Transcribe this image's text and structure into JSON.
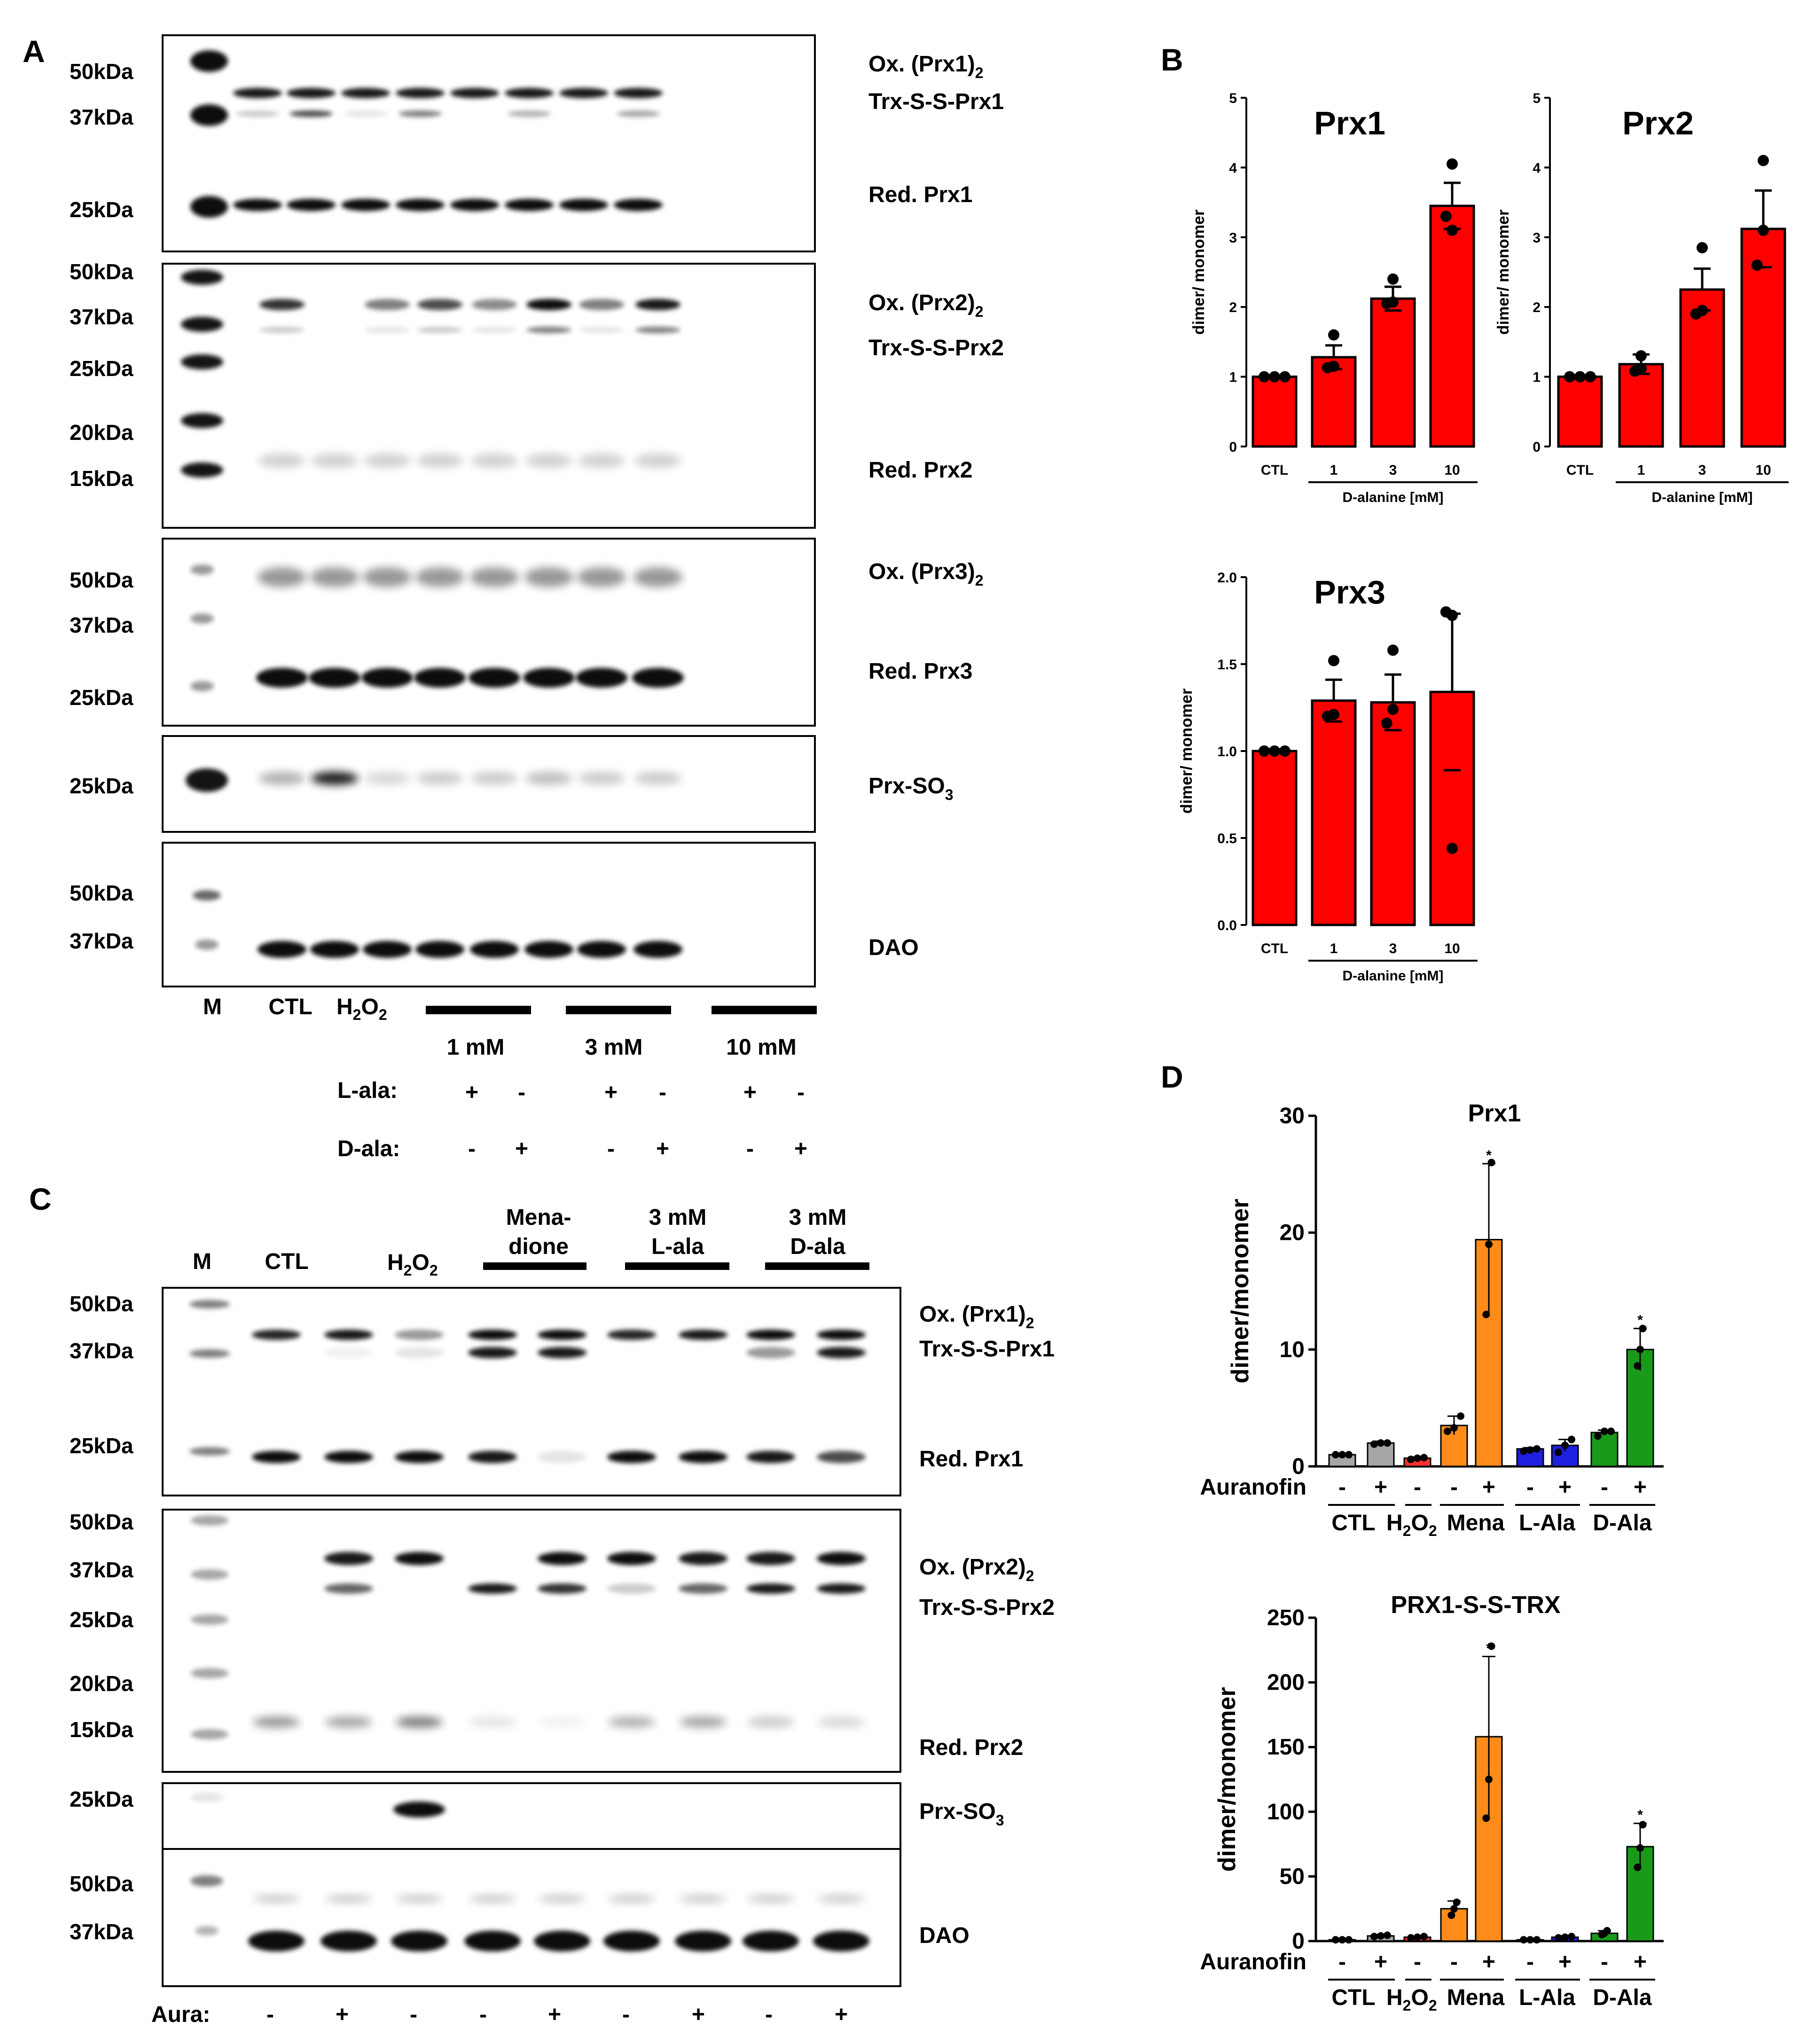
{
  "figure": {
    "panels": {
      "a": "A",
      "b": "B",
      "c": "C",
      "d": "D"
    },
    "panelA": {
      "markers": {
        "b1": [
          "50kDa",
          "37kDa",
          "25kDa"
        ],
        "b2": [
          "50kDa",
          "37kDa",
          "25kDa",
          "20kDa",
          "15kDa"
        ],
        "b3": [
          "50kDa",
          "37kDa",
          "25kDa"
        ],
        "b4": [
          "25kDa"
        ],
        "b5": [
          "50kDa",
          "37kDa"
        ]
      },
      "bandLabels": {
        "b1_ox": "Ox. (Prx1)",
        "b1_trx": "Trx-S-S-Prx1",
        "b1_red": "Red. Prx1",
        "b2_ox": "Ox. (Prx2)",
        "b2_trx": "Trx-S-S-Prx2",
        "b2_red": "Red. Prx2",
        "b3_ox": "Ox. (Prx3)",
        "b3_red": "Red. Prx3",
        "b4": "Prx-SO",
        "b5": "DAO",
        "sub2": "2",
        "sub3": "3"
      },
      "lanes": {
        "m": "M",
        "ctl": "CTL",
        "h2o2": "H",
        "h2o2_sub": "2",
        "h2o2_o": "O",
        "h2o2_sub2": "2"
      },
      "doses": [
        "1 mM",
        "3 mM",
        "10 mM"
      ],
      "lalaLabel": "L-ala:",
      "dalaLabel": "D-ala:",
      "lalaSigns": [
        "+",
        "-",
        "+",
        "-",
        "+",
        "-"
      ],
      "dalaSigns": [
        "-",
        "+",
        "-",
        "+",
        "-",
        "+"
      ]
    },
    "panelC": {
      "headers": {
        "m": "M",
        "ctl": "CTL",
        "h2o2": "H",
        "sub": "2",
        "o": "O",
        "mena1": "Mena-",
        "mena2": "dione",
        "l1": "3 mM",
        "l2": "L-ala",
        "d1": "3 mM",
        "d2": "D-ala"
      },
      "markers": {
        "b1": [
          "50kDa",
          "37kDa",
          "25kDa"
        ],
        "b2": [
          "50kDa",
          "37kDa",
          "25kDa",
          "20kDa",
          "15kDa"
        ],
        "b3": [
          "25kDa"
        ],
        "b4": [
          "50kDa",
          "37kDa"
        ]
      },
      "bandLabels": {
        "b1_ox": "Ox. (Prx1)",
        "b1_trx": "Trx-S-S-Prx1",
        "b1_red": "Red. Prx1",
        "b2_ox": "Ox. (Prx2)",
        "b2_trx": "Trx-S-S-Prx2",
        "b2_red": "Red. Prx2",
        "b3": "Prx-SO",
        "b4": "DAO",
        "sub2": "2",
        "sub3": "3"
      },
      "auraLabel": "Aura:",
      "auraSigns": [
        "-",
        "+",
        "-",
        "-",
        "+",
        "-",
        "+",
        "-",
        "+"
      ]
    }
  },
  "chart_data": [
    {
      "type": "bar",
      "title": "Prx1",
      "categories": [
        "CTL",
        "1",
        "3",
        "10"
      ],
      "values": [
        1.0,
        1.28,
        2.12,
        3.45
      ],
      "errors": [
        0.02,
        0.17,
        0.17,
        0.33
      ],
      "points": [
        [
          1,
          1,
          1
        ],
        [
          1.13,
          1.15,
          1.6
        ],
        [
          2.05,
          2.07,
          2.4
        ],
        [
          3.3,
          3.1,
          4.05
        ]
      ],
      "group_label": "D-alanine [mM]",
      "ylabel": "dimer/ monomer",
      "ylim": [
        0,
        5
      ],
      "yticks": [
        "0",
        "1",
        "2",
        "3",
        "4",
        "5"
      ],
      "color": "#ff0000"
    },
    {
      "type": "bar",
      "title": "Prx2",
      "categories": [
        "CTL",
        "1",
        "3",
        "10"
      ],
      "values": [
        1.0,
        1.18,
        2.25,
        3.12
      ],
      "errors": [
        0.02,
        0.14,
        0.3,
        0.55
      ],
      "points": [
        [
          1,
          1,
          1
        ],
        [
          1.08,
          1.12,
          1.3
        ],
        [
          1.9,
          1.95,
          2.85
        ],
        [
          2.6,
          3.1,
          4.1
        ]
      ],
      "group_label": "D-alanine [mM]",
      "ylabel": "dimer/ monomer",
      "ylim": [
        0,
        5
      ],
      "yticks": [
        "0",
        "1",
        "2",
        "3",
        "4",
        "5"
      ],
      "color": "#ff0000"
    },
    {
      "type": "bar",
      "title": "Prx3",
      "categories": [
        "CTL",
        "1",
        "3",
        "10"
      ],
      "values": [
        1.0,
        1.29,
        1.28,
        1.34
      ],
      "errors": [
        0.01,
        0.12,
        0.16,
        0.45
      ],
      "points": [
        [
          1,
          1,
          1
        ],
        [
          1.2,
          1.21,
          1.52
        ],
        [
          1.16,
          1.24,
          1.58
        ],
        [
          1.8,
          1.78,
          0.44
        ]
      ],
      "group_label": "D-alanine [mM]",
      "ylabel": "dimer/ monomer",
      "ylim": [
        0,
        2.0
      ],
      "yticks": [
        "0.0",
        "0.5",
        "1.0",
        "1.5",
        "2.0"
      ],
      "color": "#ff0000"
    },
    {
      "type": "bar",
      "title": "Prx1",
      "ylabel": "dimer/monomer",
      "ylim": [
        0,
        30
      ],
      "yticks": [
        "0",
        "10",
        "20",
        "30"
      ],
      "auranofin_label": "Auranofin",
      "auranofin_signs": [
        "-",
        "+",
        "-",
        "-",
        "+",
        "-",
        "+",
        "-",
        "+"
      ],
      "groups": [
        "CTL",
        "H2O2",
        "Mena",
        "L-Ala",
        "D-Ala"
      ],
      "values": [
        1.0,
        2.0,
        0.7,
        3.5,
        19.4,
        1.5,
        1.8,
        2.9,
        10.0
      ],
      "errors": [
        0.05,
        0.15,
        0.1,
        0.8,
        6.5,
        0.1,
        0.5,
        0.2,
        1.8
      ],
      "points": [
        [
          1,
          1,
          1
        ],
        [
          1.9,
          2.0,
          2.0
        ],
        [
          0.6,
          0.7,
          0.75
        ],
        [
          3.0,
          3.3,
          4.3
        ],
        [
          13.0,
          19.0,
          26.0
        ],
        [
          1.3,
          1.4,
          1.5
        ],
        [
          1.2,
          1.8,
          2.3
        ],
        [
          2.6,
          3.0,
          3.0
        ],
        [
          8.6,
          10.0,
          11.8
        ]
      ],
      "stars": [
        "",
        "",
        "",
        "",
        "*",
        "",
        "",
        "",
        "*"
      ],
      "colors": [
        "#a6a6a6",
        "#a6a6a6",
        "#ff2f2f",
        "#ff8c1a",
        "#ff8c1a",
        "#1f1fe0",
        "#1f1fe0",
        "#1a9a1a",
        "#1a9a1a"
      ]
    },
    {
      "type": "bar",
      "title": "PRX1-S-S-TRX",
      "ylabel": "dimer/monomer",
      "ylim": [
        0,
        250
      ],
      "yticks": [
        "0",
        "50",
        "100",
        "150",
        "200",
        "250"
      ],
      "auranofin_label": "Auranofin",
      "auranofin_signs": [
        "-",
        "+",
        "-",
        "-",
        "+",
        "-",
        "+",
        "-",
        "+"
      ],
      "groups": [
        "CTL",
        "H2O2",
        "Mena",
        "L-Ala",
        "D-Ala"
      ],
      "values": [
        1.0,
        4.0,
        3.0,
        25.0,
        158.0,
        1.0,
        3.0,
        6.0,
        73.0
      ],
      "errors": [
        0.5,
        1.0,
        0.8,
        6.0,
        62.0,
        0.5,
        1.0,
        2.0,
        18.0
      ],
      "points": [
        [
          1,
          1,
          1
        ],
        [
          3.5,
          4.0,
          4.5
        ],
        [
          2.5,
          3.0,
          3.5
        ],
        [
          20,
          25,
          30
        ],
        [
          95,
          125,
          228
        ],
        [
          1,
          1,
          1
        ],
        [
          2.5,
          3.0,
          3.5
        ],
        [
          5,
          6,
          8
        ],
        [
          57,
          72,
          90
        ]
      ],
      "stars": [
        "",
        "",
        "",
        "",
        "*",
        "",
        "",
        "",
        "*"
      ],
      "colors": [
        "#a6a6a6",
        "#a6a6a6",
        "#ff2f2f",
        "#ff8c1a",
        "#ff8c1a",
        "#1f1fe0",
        "#1f1fe0",
        "#1a9a1a",
        "#1a9a1a"
      ]
    }
  ]
}
